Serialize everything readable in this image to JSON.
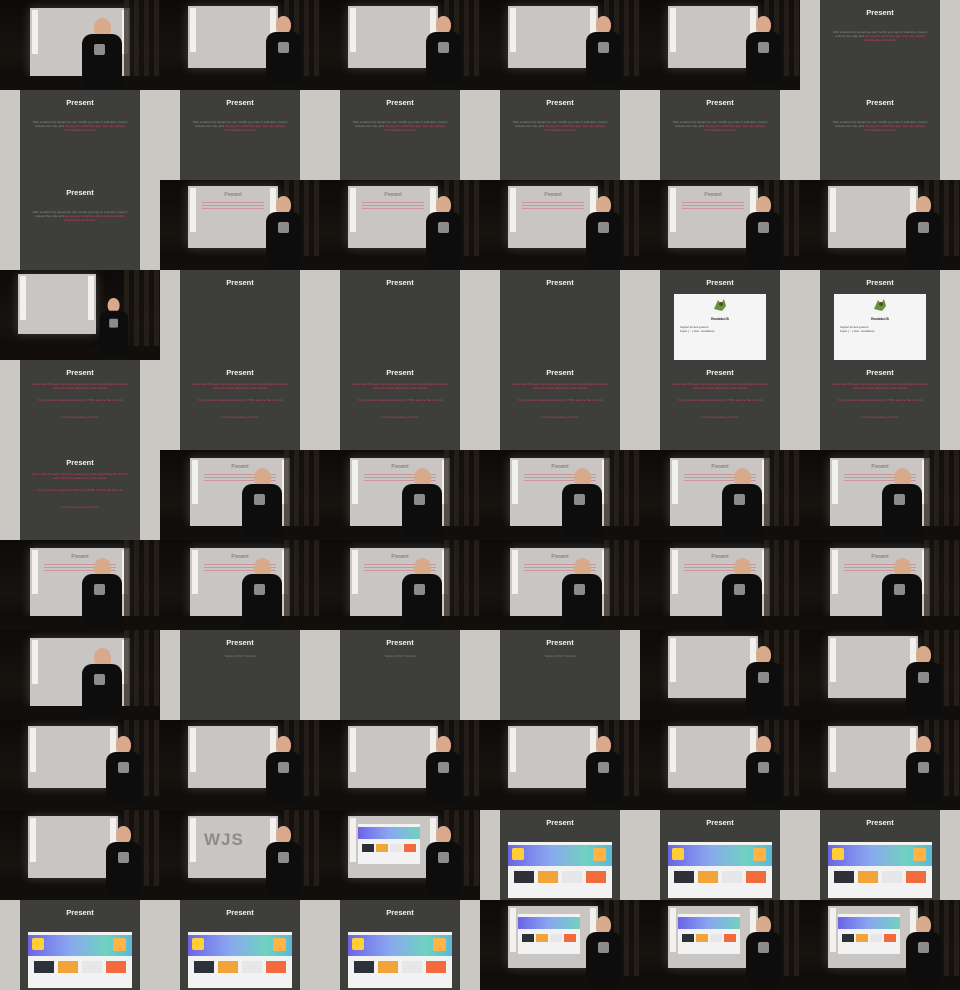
{
  "sheet": {
    "columns": 6,
    "rows": 11
  },
  "slide_text": {
    "title": "Present",
    "intro_line": "...",
    "intro_paragraph": "With enabled hot reload you can modify your app in real time. Keep it relaxed the code and",
    "intro_highlight": "we need to restart the app when you adding functionality and hooks",
    "dark_caption": "...",
    "card_name": "EmulatorJS",
    "card_tagline": "Support for web systems",
    "card_body": "import { ... } from './emulator.js'",
    "red_paragraph_1": "Seems like 'Present' will be so amazing to have something like this but with a lot of the slideshow in the section",
    "red_paragraph_2": "It'd be great to support rendering of HTML and the file from url",
    "red_note": "Let me know what you think",
    "split_caption": "Tailwind MDX / Tailwind"
  },
  "frames": [
    {
      "kind": "room",
      "variant": "close"
    },
    {
      "kind": "room",
      "variant": "side"
    },
    {
      "kind": "room",
      "variant": "side"
    },
    {
      "kind": "room",
      "variant": "side"
    },
    {
      "kind": "room",
      "variant": "side"
    },
    {
      "kind": "slide",
      "layout": "intro"
    },
    {
      "kind": "slide",
      "layout": "intro"
    },
    {
      "kind": "slide",
      "layout": "intro"
    },
    {
      "kind": "slide",
      "layout": "intro"
    },
    {
      "kind": "slide",
      "layout": "intro"
    },
    {
      "kind": "slide",
      "layout": "intro"
    },
    {
      "kind": "slide",
      "layout": "intro"
    },
    {
      "kind": "slide",
      "layout": "intro"
    },
    {
      "kind": "room",
      "variant": "side",
      "overlay": "lines"
    },
    {
      "kind": "room",
      "variant": "side",
      "overlay": "lines"
    },
    {
      "kind": "room",
      "variant": "side",
      "overlay": "lines"
    },
    {
      "kind": "room",
      "variant": "side",
      "overlay": "lines"
    },
    {
      "kind": "room",
      "variant": "side"
    },
    {
      "kind": "room",
      "variant": "far"
    },
    {
      "kind": "slide",
      "layout": "dark"
    },
    {
      "kind": "slide",
      "layout": "dark"
    },
    {
      "kind": "slide",
      "layout": "dark"
    },
    {
      "kind": "slide",
      "layout": "card"
    },
    {
      "kind": "slide",
      "layout": "card"
    },
    {
      "kind": "slide",
      "layout": "red"
    },
    {
      "kind": "slide",
      "layout": "red"
    },
    {
      "kind": "slide",
      "layout": "red"
    },
    {
      "kind": "slide",
      "layout": "red"
    },
    {
      "kind": "slide",
      "layout": "red"
    },
    {
      "kind": "slide",
      "layout": "red"
    },
    {
      "kind": "slide",
      "layout": "red"
    },
    {
      "kind": "room",
      "variant": "close",
      "overlay": "lines"
    },
    {
      "kind": "room",
      "variant": "close",
      "overlay": "lines"
    },
    {
      "kind": "room",
      "variant": "close",
      "overlay": "lines"
    },
    {
      "kind": "room",
      "variant": "close",
      "overlay": "lines"
    },
    {
      "kind": "room",
      "variant": "close",
      "overlay": "lines"
    },
    {
      "kind": "room",
      "variant": "close",
      "overlay": "lines"
    },
    {
      "kind": "room",
      "variant": "close",
      "overlay": "lines"
    },
    {
      "kind": "room",
      "variant": "close",
      "overlay": "lines"
    },
    {
      "kind": "room",
      "variant": "close",
      "overlay": "lines"
    },
    {
      "kind": "room",
      "variant": "close",
      "overlay": "lines"
    },
    {
      "kind": "room",
      "variant": "close",
      "overlay": "lines"
    },
    {
      "kind": "room",
      "variant": "close"
    },
    {
      "kind": "slide",
      "layout": "split"
    },
    {
      "kind": "slide",
      "layout": "split"
    },
    {
      "kind": "slide",
      "layout": "split"
    },
    {
      "kind": "room",
      "variant": "side"
    },
    {
      "kind": "room",
      "variant": "side"
    },
    {
      "kind": "room",
      "variant": "side"
    },
    {
      "kind": "room",
      "variant": "side"
    },
    {
      "kind": "room",
      "variant": "side"
    },
    {
      "kind": "room",
      "variant": "side"
    },
    {
      "kind": "room",
      "variant": "side"
    },
    {
      "kind": "room",
      "variant": "side"
    },
    {
      "kind": "room",
      "variant": "side"
    },
    {
      "kind": "room",
      "variant": "side",
      "overlay": "wjs"
    },
    {
      "kind": "room",
      "variant": "side",
      "overlay": "site"
    },
    {
      "kind": "slide",
      "layout": "site"
    },
    {
      "kind": "slide",
      "layout": "site"
    },
    {
      "kind": "slide",
      "layout": "site"
    },
    {
      "kind": "slide",
      "layout": "site"
    },
    {
      "kind": "slide",
      "layout": "site"
    },
    {
      "kind": "slide",
      "layout": "site"
    },
    {
      "kind": "room",
      "variant": "side",
      "overlay": "site"
    },
    {
      "kind": "room",
      "variant": "side",
      "overlay": "site"
    },
    {
      "kind": "room",
      "variant": "side",
      "overlay": "site"
    }
  ],
  "overlay_text": {
    "wjs": "WJS",
    "shot_title": "Present"
  },
  "colors": {
    "slide_bg": "#3e3f3c",
    "accent_pink": "#d63a5b",
    "page_gutter": "#cbc8c4"
  }
}
